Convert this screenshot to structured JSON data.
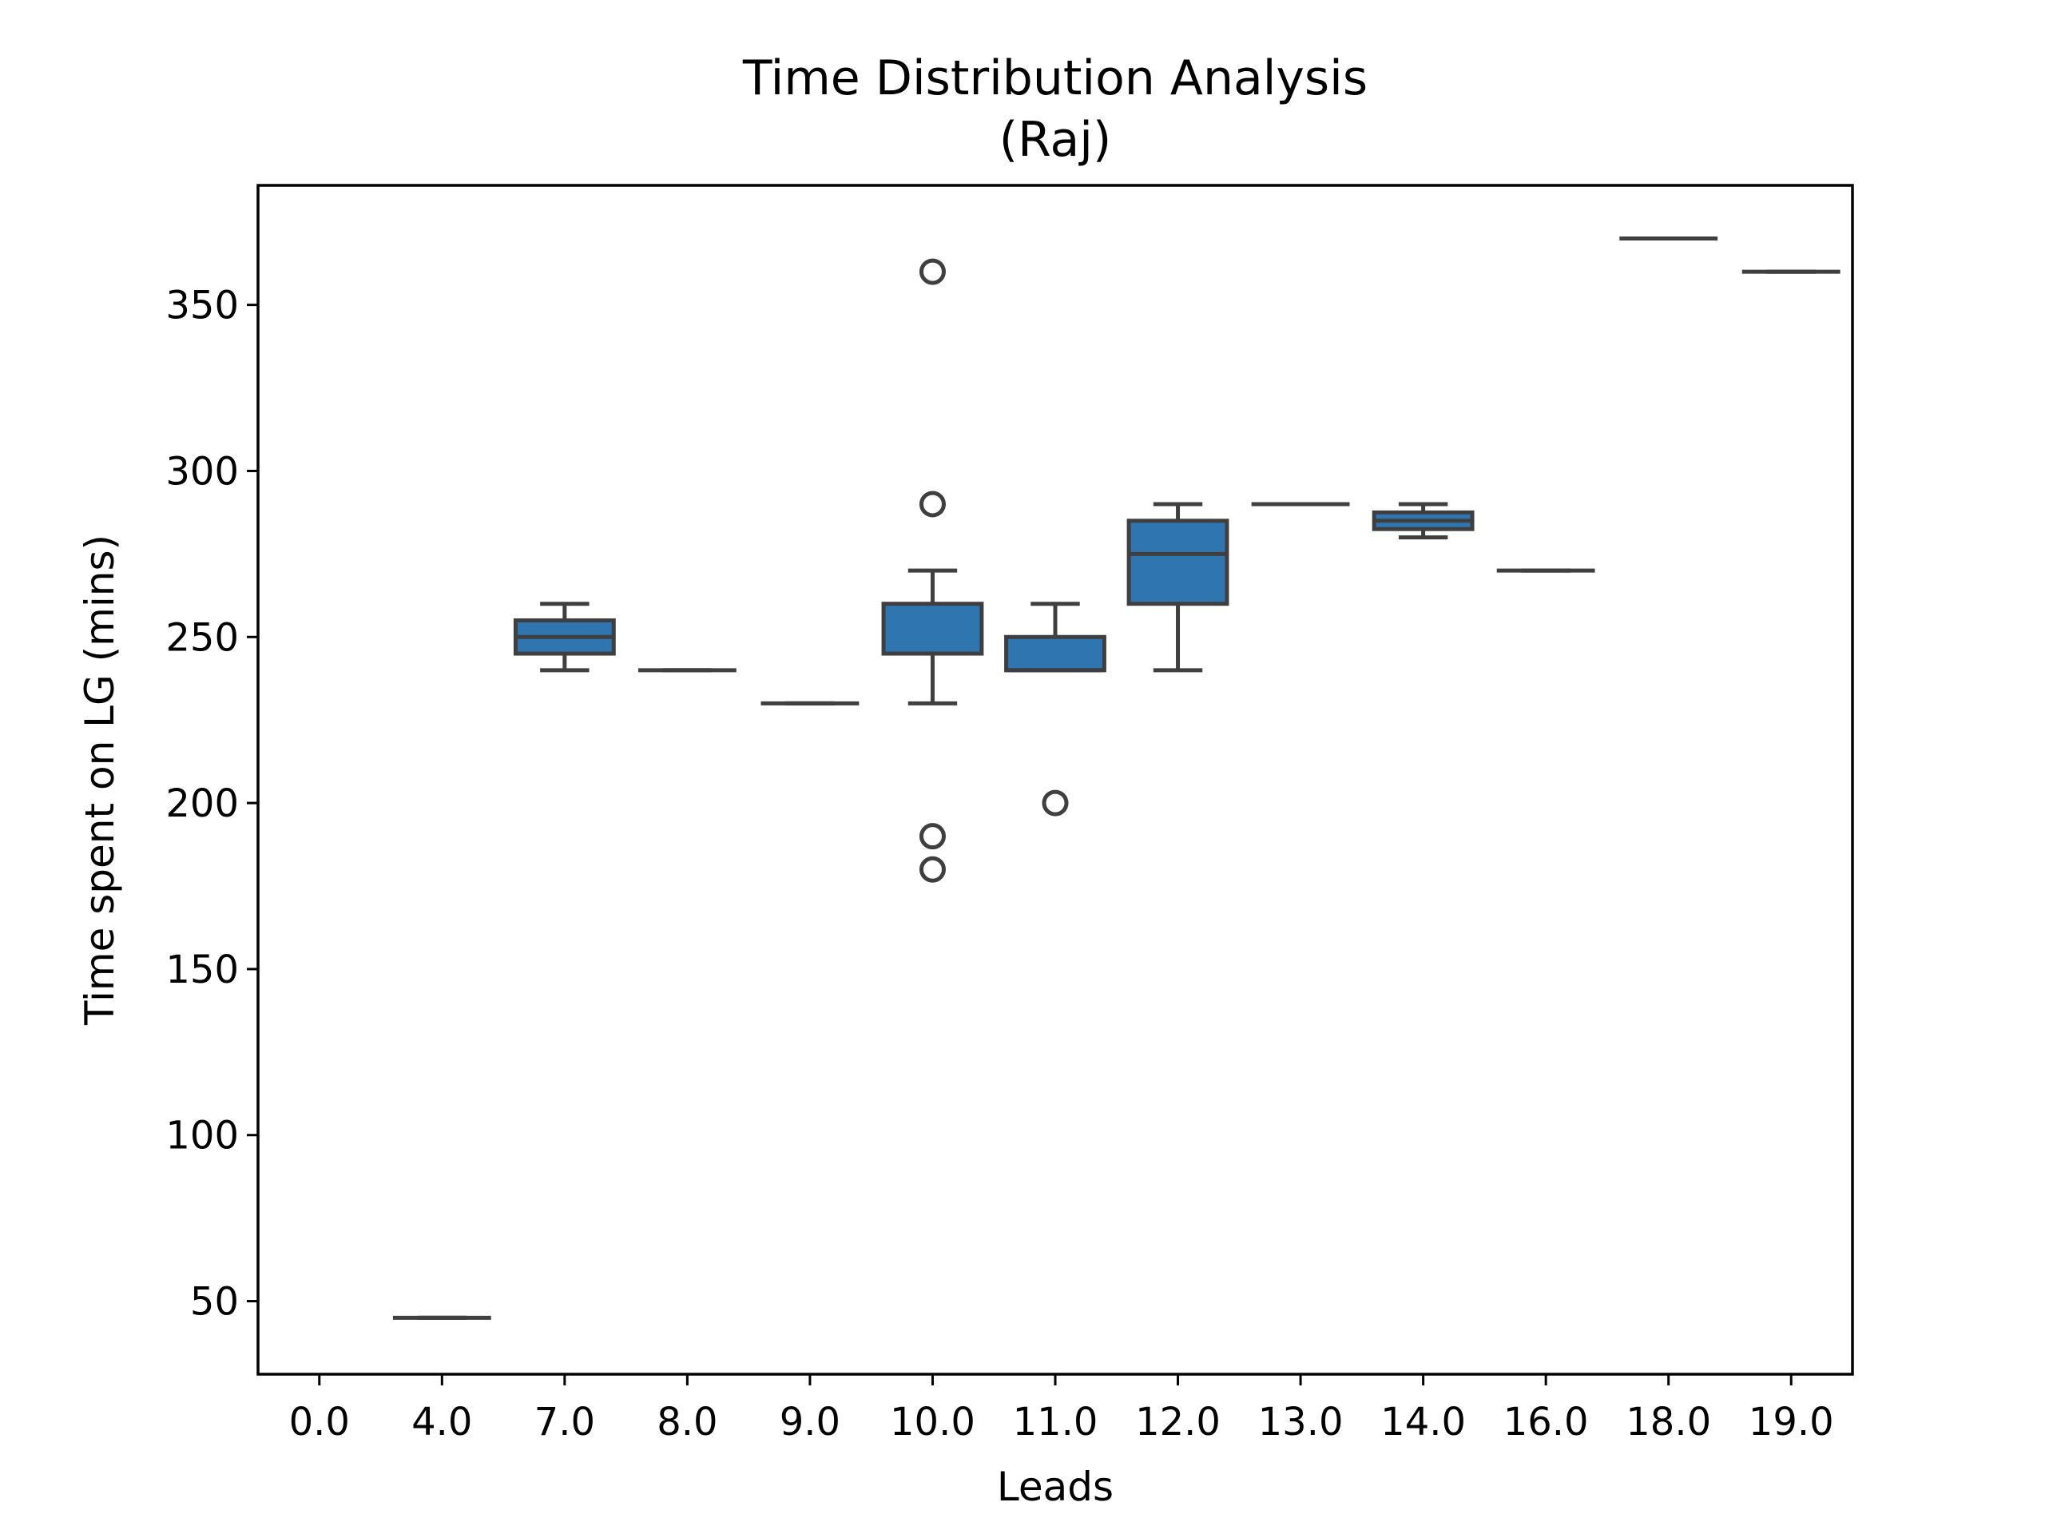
{
  "chart_data": {
    "type": "box",
    "title": "Time Distribution Analysis",
    "subtitle": "(Raj)",
    "xlabel": "Leads",
    "ylabel": "Time spent on LG (mins)",
    "ylim": [
      28,
      386
    ],
    "yticks": [
      50,
      100,
      150,
      200,
      250,
      300,
      350
    ],
    "box_color": "#2f75b0",
    "line_color": "#3f3f3f",
    "categories": [
      "0.0",
      "4.0",
      "7.0",
      "8.0",
      "9.0",
      "10.0",
      "11.0",
      "12.0",
      "13.0",
      "14.0",
      "16.0",
      "18.0",
      "19.0"
    ],
    "boxes": [
      {
        "category": "0.0",
        "empty": true
      },
      {
        "category": "4.0",
        "q1": 45,
        "median": 45,
        "q3": 45,
        "whisker_low": 45,
        "whisker_high": 45,
        "outliers": []
      },
      {
        "category": "7.0",
        "q1": 245,
        "median": 250,
        "q3": 255,
        "whisker_low": 240,
        "whisker_high": 260,
        "outliers": []
      },
      {
        "category": "8.0",
        "q1": 240,
        "median": 240,
        "q3": 240,
        "whisker_low": 240,
        "whisker_high": 240,
        "outliers": []
      },
      {
        "category": "9.0",
        "q1": 230,
        "median": 230,
        "q3": 230,
        "whisker_low": 230,
        "whisker_high": 230,
        "outliers": []
      },
      {
        "category": "10.0",
        "q1": 245,
        "median": 245,
        "q3": 260,
        "whisker_low": 230,
        "whisker_high": 270,
        "outliers": [
          360,
          290,
          190,
          180
        ]
      },
      {
        "category": "11.0",
        "q1": 240,
        "median": 240,
        "q3": 250,
        "whisker_low": 240,
        "whisker_high": 260,
        "outliers": [
          200
        ]
      },
      {
        "category": "12.0",
        "q1": 260,
        "median": 275,
        "q3": 285,
        "whisker_low": 240,
        "whisker_high": 290,
        "outliers": []
      },
      {
        "category": "13.0",
        "q1": 290,
        "median": 290,
        "q3": 290,
        "whisker_low": 290,
        "whisker_high": 290,
        "outliers": []
      },
      {
        "category": "14.0",
        "q1": 282.5,
        "median": 285,
        "q3": 287.5,
        "whisker_low": 280,
        "whisker_high": 290,
        "outliers": []
      },
      {
        "category": "16.0",
        "q1": 270,
        "median": 270,
        "q3": 270,
        "whisker_low": 270,
        "whisker_high": 270,
        "outliers": []
      },
      {
        "category": "18.0",
        "q1": 370,
        "median": 370,
        "q3": 370,
        "whisker_low": 370,
        "whisker_high": 370,
        "outliers": []
      },
      {
        "category": "19.0",
        "q1": 360,
        "median": 360,
        "q3": 360,
        "whisker_low": 360,
        "whisker_high": 360,
        "outliers": []
      }
    ]
  }
}
